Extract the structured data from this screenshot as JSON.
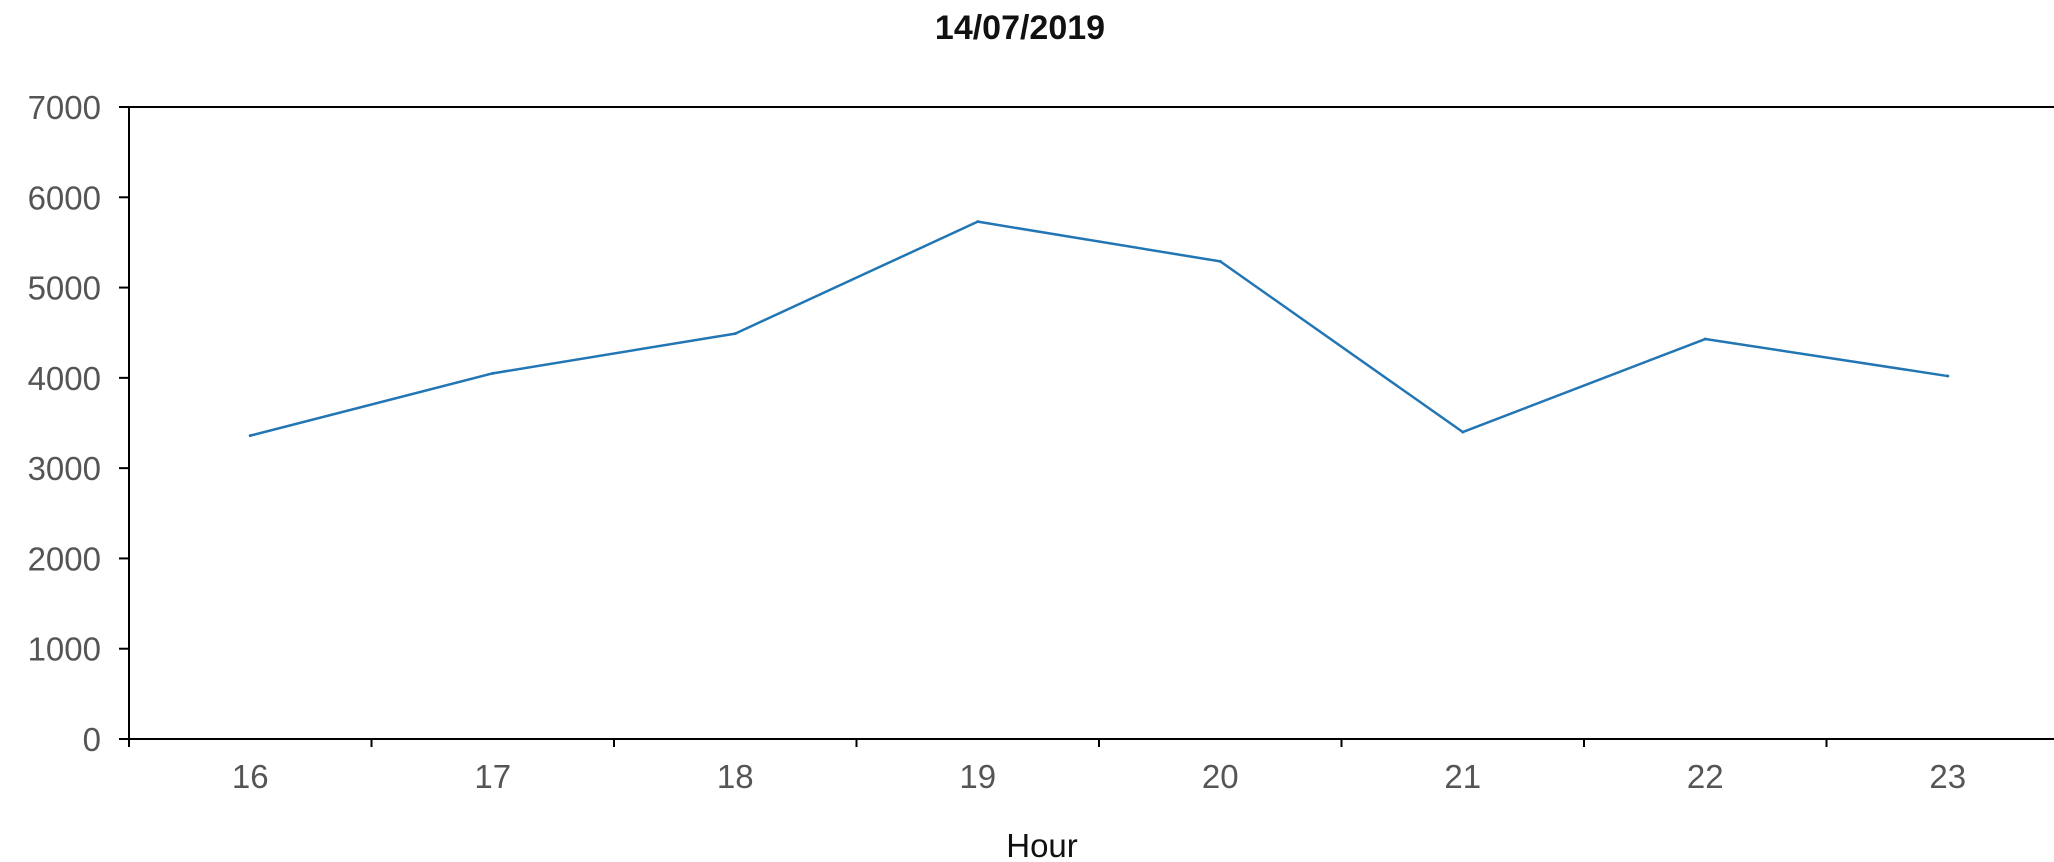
{
  "chart_data": {
    "type": "line",
    "title": "14/07/2019",
    "xlabel": "Hour",
    "ylabel": "",
    "categories": [
      "16",
      "17",
      "18",
      "19",
      "20",
      "21",
      "22",
      "23"
    ],
    "series": [
      {
        "values": [
          3360,
          4050,
          4490,
          5730,
          5290,
          3400,
          4430,
          4020
        ]
      }
    ],
    "y_ticks": [
      "0",
      "1000",
      "2000",
      "3000",
      "4000",
      "5000",
      "6000",
      "7000"
    ],
    "ylim": [
      0,
      7000
    ],
    "grid": false,
    "legend": "none",
    "line_color": "#2276b4"
  }
}
